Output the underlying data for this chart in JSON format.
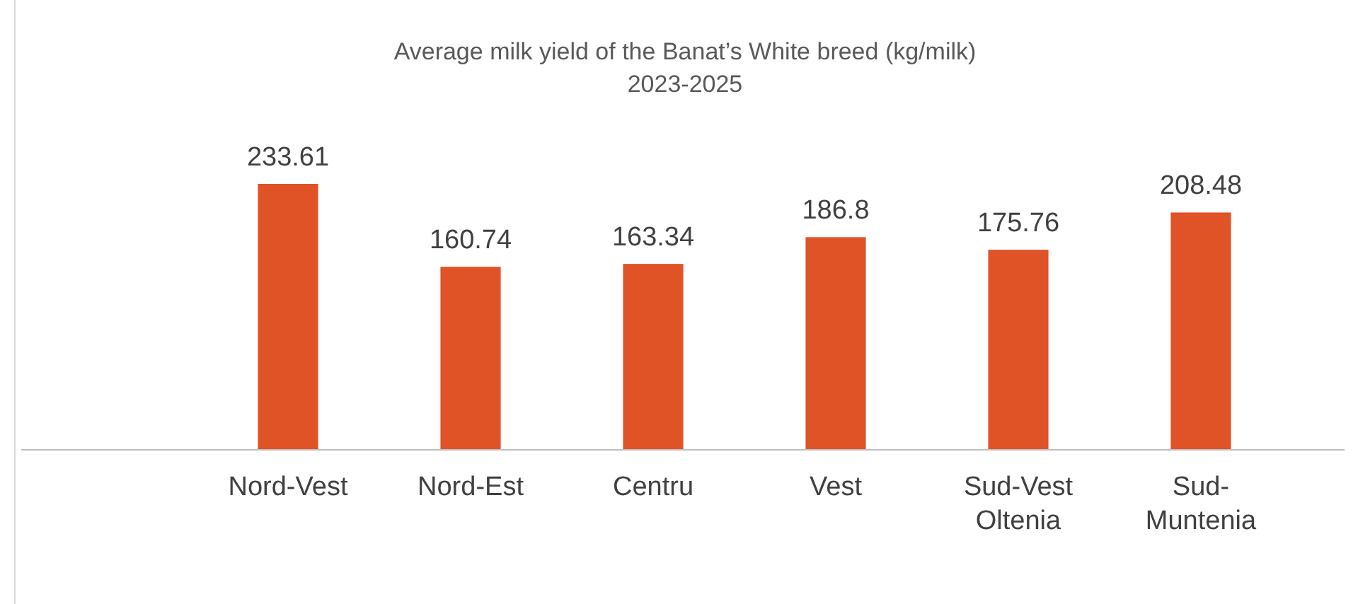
{
  "chart_data": {
    "type": "bar",
    "title": "Average milk yield of the Banat’s White breed (kg/milk)",
    "subtitle": "2023-2025",
    "categories": [
      "Nord-Vest",
      "Nord-Est",
      "Centru",
      "Vest",
      "Sud-Vest Oltenia",
      "Sud-Muntenia"
    ],
    "values": [
      233.61,
      160.74,
      163.34,
      186.8,
      175.76,
      208.48
    ],
    "color": "#e05326",
    "data_labels": true
  }
}
